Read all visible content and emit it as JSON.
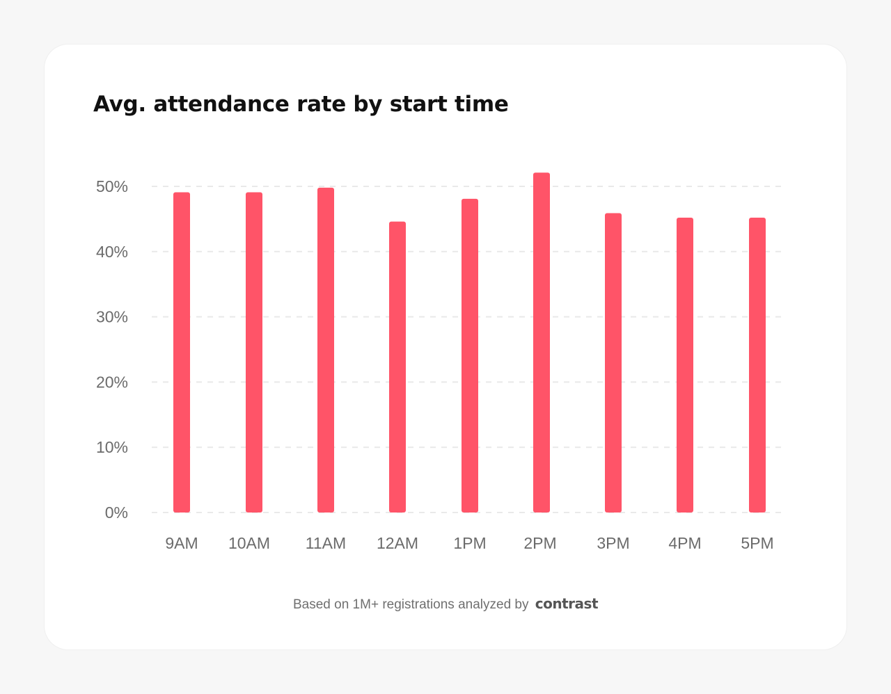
{
  "chart_data": {
    "type": "bar",
    "title": "Avg. attendance rate by start time",
    "xlabel": "",
    "ylabel": "",
    "categories": [
      "9AM",
      "10AM",
      "11AM",
      "12AM",
      "1PM",
      "2PM",
      "3PM",
      "4PM",
      "5PM"
    ],
    "values": [
      49.1,
      49.1,
      49.8,
      44.6,
      48.1,
      52.1,
      45.9,
      45.2,
      45.2
    ],
    "ylim": [
      0,
      50
    ],
    "yticks": [
      0,
      10,
      20,
      30,
      40,
      50
    ],
    "ytick_labels": [
      "0%",
      "10%",
      "20%",
      "30%",
      "40%",
      "50%"
    ],
    "grid": true,
    "bar_color": "#ff5468",
    "gridline_color": "#e9e9e9"
  },
  "footer": {
    "text": "Based on 1M+ registrations analyzed by",
    "brand": "contrast"
  }
}
